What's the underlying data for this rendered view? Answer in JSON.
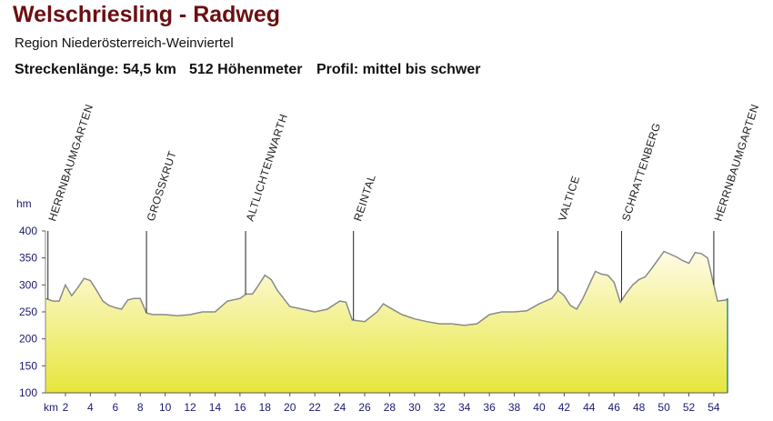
{
  "title": "Welschriesling - Radweg",
  "subtitle": "Region Niederösterreich-Weinviertel",
  "info": [
    "Streckenlänge: 54,5 km",
    "512 Höhenmeter",
    "Profil: mittel bis schwer"
  ],
  "chart_data": {
    "type": "area",
    "y_label": "hm",
    "x_label": "km",
    "xlim": [
      0.4,
      55.1
    ],
    "ylim": [
      100,
      400
    ],
    "xticks": [
      2,
      4,
      6,
      8,
      10,
      12,
      14,
      16,
      18,
      20,
      22,
      24,
      26,
      28,
      30,
      32,
      34,
      36,
      38,
      40,
      42,
      44,
      46,
      48,
      50,
      52,
      54
    ],
    "yticks": [
      100,
      150,
      200,
      250,
      300,
      350,
      400
    ],
    "line_color": "#8a8a8a",
    "fill_top": "#fffbe6",
    "fill_bottom": "#e6e63c",
    "x": [
      0.4,
      1,
      1.5,
      2,
      2.5,
      3,
      3.5,
      4,
      4.5,
      5,
      5.5,
      6,
      6.5,
      7,
      7.5,
      8,
      8.5,
      9,
      10,
      11,
      12,
      13,
      14,
      15,
      16,
      16.5,
      17,
      17.5,
      18,
      18.5,
      19,
      20,
      21,
      22,
      23,
      24,
      24.5,
      25,
      26,
      27,
      27.5,
      28,
      29,
      30,
      31,
      32,
      33,
      34,
      35,
      36,
      37,
      38,
      39,
      40,
      41,
      41.5,
      42,
      42.5,
      43,
      43.5,
      44,
      44.5,
      45,
      45.5,
      46,
      46.5,
      47,
      47.5,
      48,
      48.5,
      49,
      50,
      51,
      51.5,
      52,
      52.5,
      53,
      53.5,
      54,
      54.3,
      55,
      55.1
    ],
    "values": [
      275,
      270,
      270,
      300,
      280,
      295,
      312,
      308,
      290,
      270,
      262,
      258,
      255,
      272,
      275,
      275,
      248,
      245,
      245,
      243,
      245,
      250,
      250,
      270,
      275,
      283,
      283,
      300,
      318,
      310,
      290,
      260,
      255,
      250,
      255,
      270,
      268,
      235,
      232,
      250,
      265,
      258,
      245,
      237,
      232,
      228,
      228,
      225,
      228,
      245,
      250,
      250,
      252,
      265,
      275,
      290,
      280,
      262,
      255,
      275,
      300,
      325,
      320,
      318,
      305,
      268,
      285,
      300,
      310,
      315,
      330,
      362,
      352,
      345,
      340,
      360,
      358,
      350,
      300,
      270,
      272,
      275
    ],
    "markers": [
      {
        "label": "HERRNBAUMGARTEN",
        "km": 0.6
      },
      {
        "label": "GROSSKRUT",
        "km": 8.5
      },
      {
        "label": "ALTLICHTENWARTH",
        "km": 16.45
      },
      {
        "label": "REINTAL",
        "km": 25.1
      },
      {
        "label": "VALTICE",
        "km": 41.5
      },
      {
        "label": "SCHRATTENBERG",
        "km": 46.6
      },
      {
        "label": "HERRNBAUMGARTEN",
        "km": 54
      }
    ]
  }
}
